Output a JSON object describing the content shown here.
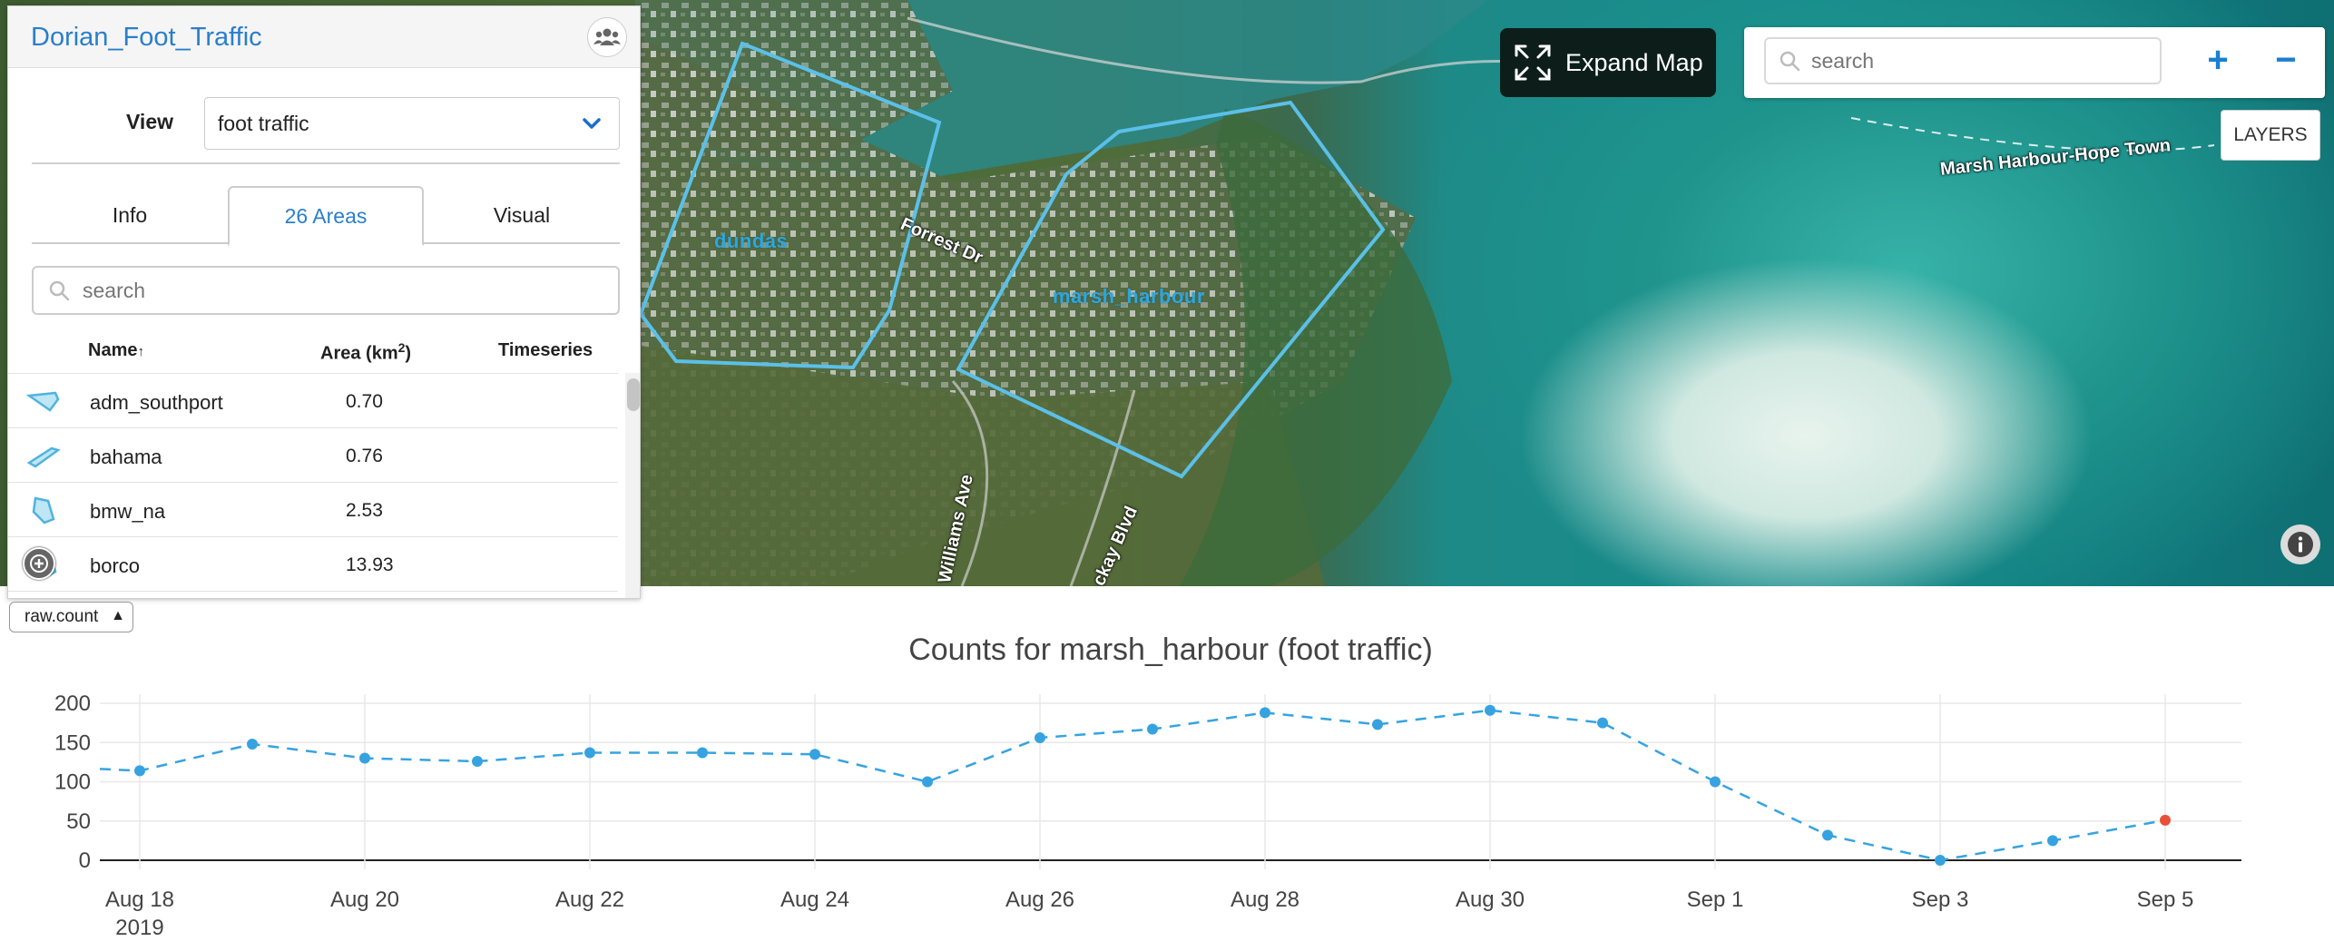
{
  "panel": {
    "title": "Dorian_Foot_Traffic",
    "view_label": "View",
    "view_value": "foot traffic",
    "tabs": [
      {
        "label": "Info"
      },
      {
        "label": "26 Areas"
      },
      {
        "label": "Visual"
      }
    ],
    "search_placeholder": "search",
    "columns": {
      "name": "Name",
      "area": "Area (km",
      "area_sup": "2",
      "area_close": ")",
      "timeseries": "Timeseries"
    },
    "rows": [
      {
        "name": "adm_southport",
        "area": "0.70"
      },
      {
        "name": "bahama",
        "area": "0.76"
      },
      {
        "name": "bmw_na",
        "area": "2.53"
      },
      {
        "name": "borco",
        "area": "13.93"
      }
    ]
  },
  "map": {
    "expand_label": "Expand Map",
    "search_placeholder": "search",
    "zoom_in": "+",
    "zoom_out": "−",
    "layers_label": "LAYERS",
    "area_labels": [
      "dundas",
      "marsh_harbour"
    ],
    "road_labels": [
      "Forrest Dr",
      "Williams Ave",
      "ckay Blvd",
      "Marsh Harbour-Hope Town"
    ],
    "polygon_color": "#5bc0e8"
  },
  "metric": {
    "value": "raw.count"
  },
  "chart_data": {
    "type": "line",
    "title": "Counts for marsh_harbour (foot traffic)",
    "x_tick_labels": [
      "Aug 18",
      "Aug 20",
      "Aug 22",
      "Aug 24",
      "Aug 26",
      "Aug 28",
      "Aug 30",
      "Sep 1",
      "Sep 3",
      "Sep 5"
    ],
    "x_year_label": "2019",
    "y_ticks": [
      0,
      50,
      100,
      150,
      200
    ],
    "ylim": [
      0,
      200
    ],
    "series": [
      {
        "line_style": "dashed",
        "color": "#36a3e0",
        "x": [
          "2019-08-18",
          "2019-08-19",
          "2019-08-20",
          "2019-08-21",
          "2019-08-22",
          "2019-08-23",
          "2019-08-24",
          "2019-08-25",
          "2019-08-26",
          "2019-08-27",
          "2019-08-28",
          "2019-08-29",
          "2019-08-30",
          "2019-08-31",
          "2019-09-01",
          "2019-09-02",
          "2019-09-03",
          "2019-09-04",
          "2019-09-05"
        ],
        "values": [
          114,
          148,
          130,
          126,
          137,
          137,
          135,
          100,
          156,
          167,
          188,
          173,
          191,
          175,
          100,
          32,
          0,
          25,
          51
        ],
        "highlight_color": "#e8503a"
      }
    ],
    "grid": true
  }
}
